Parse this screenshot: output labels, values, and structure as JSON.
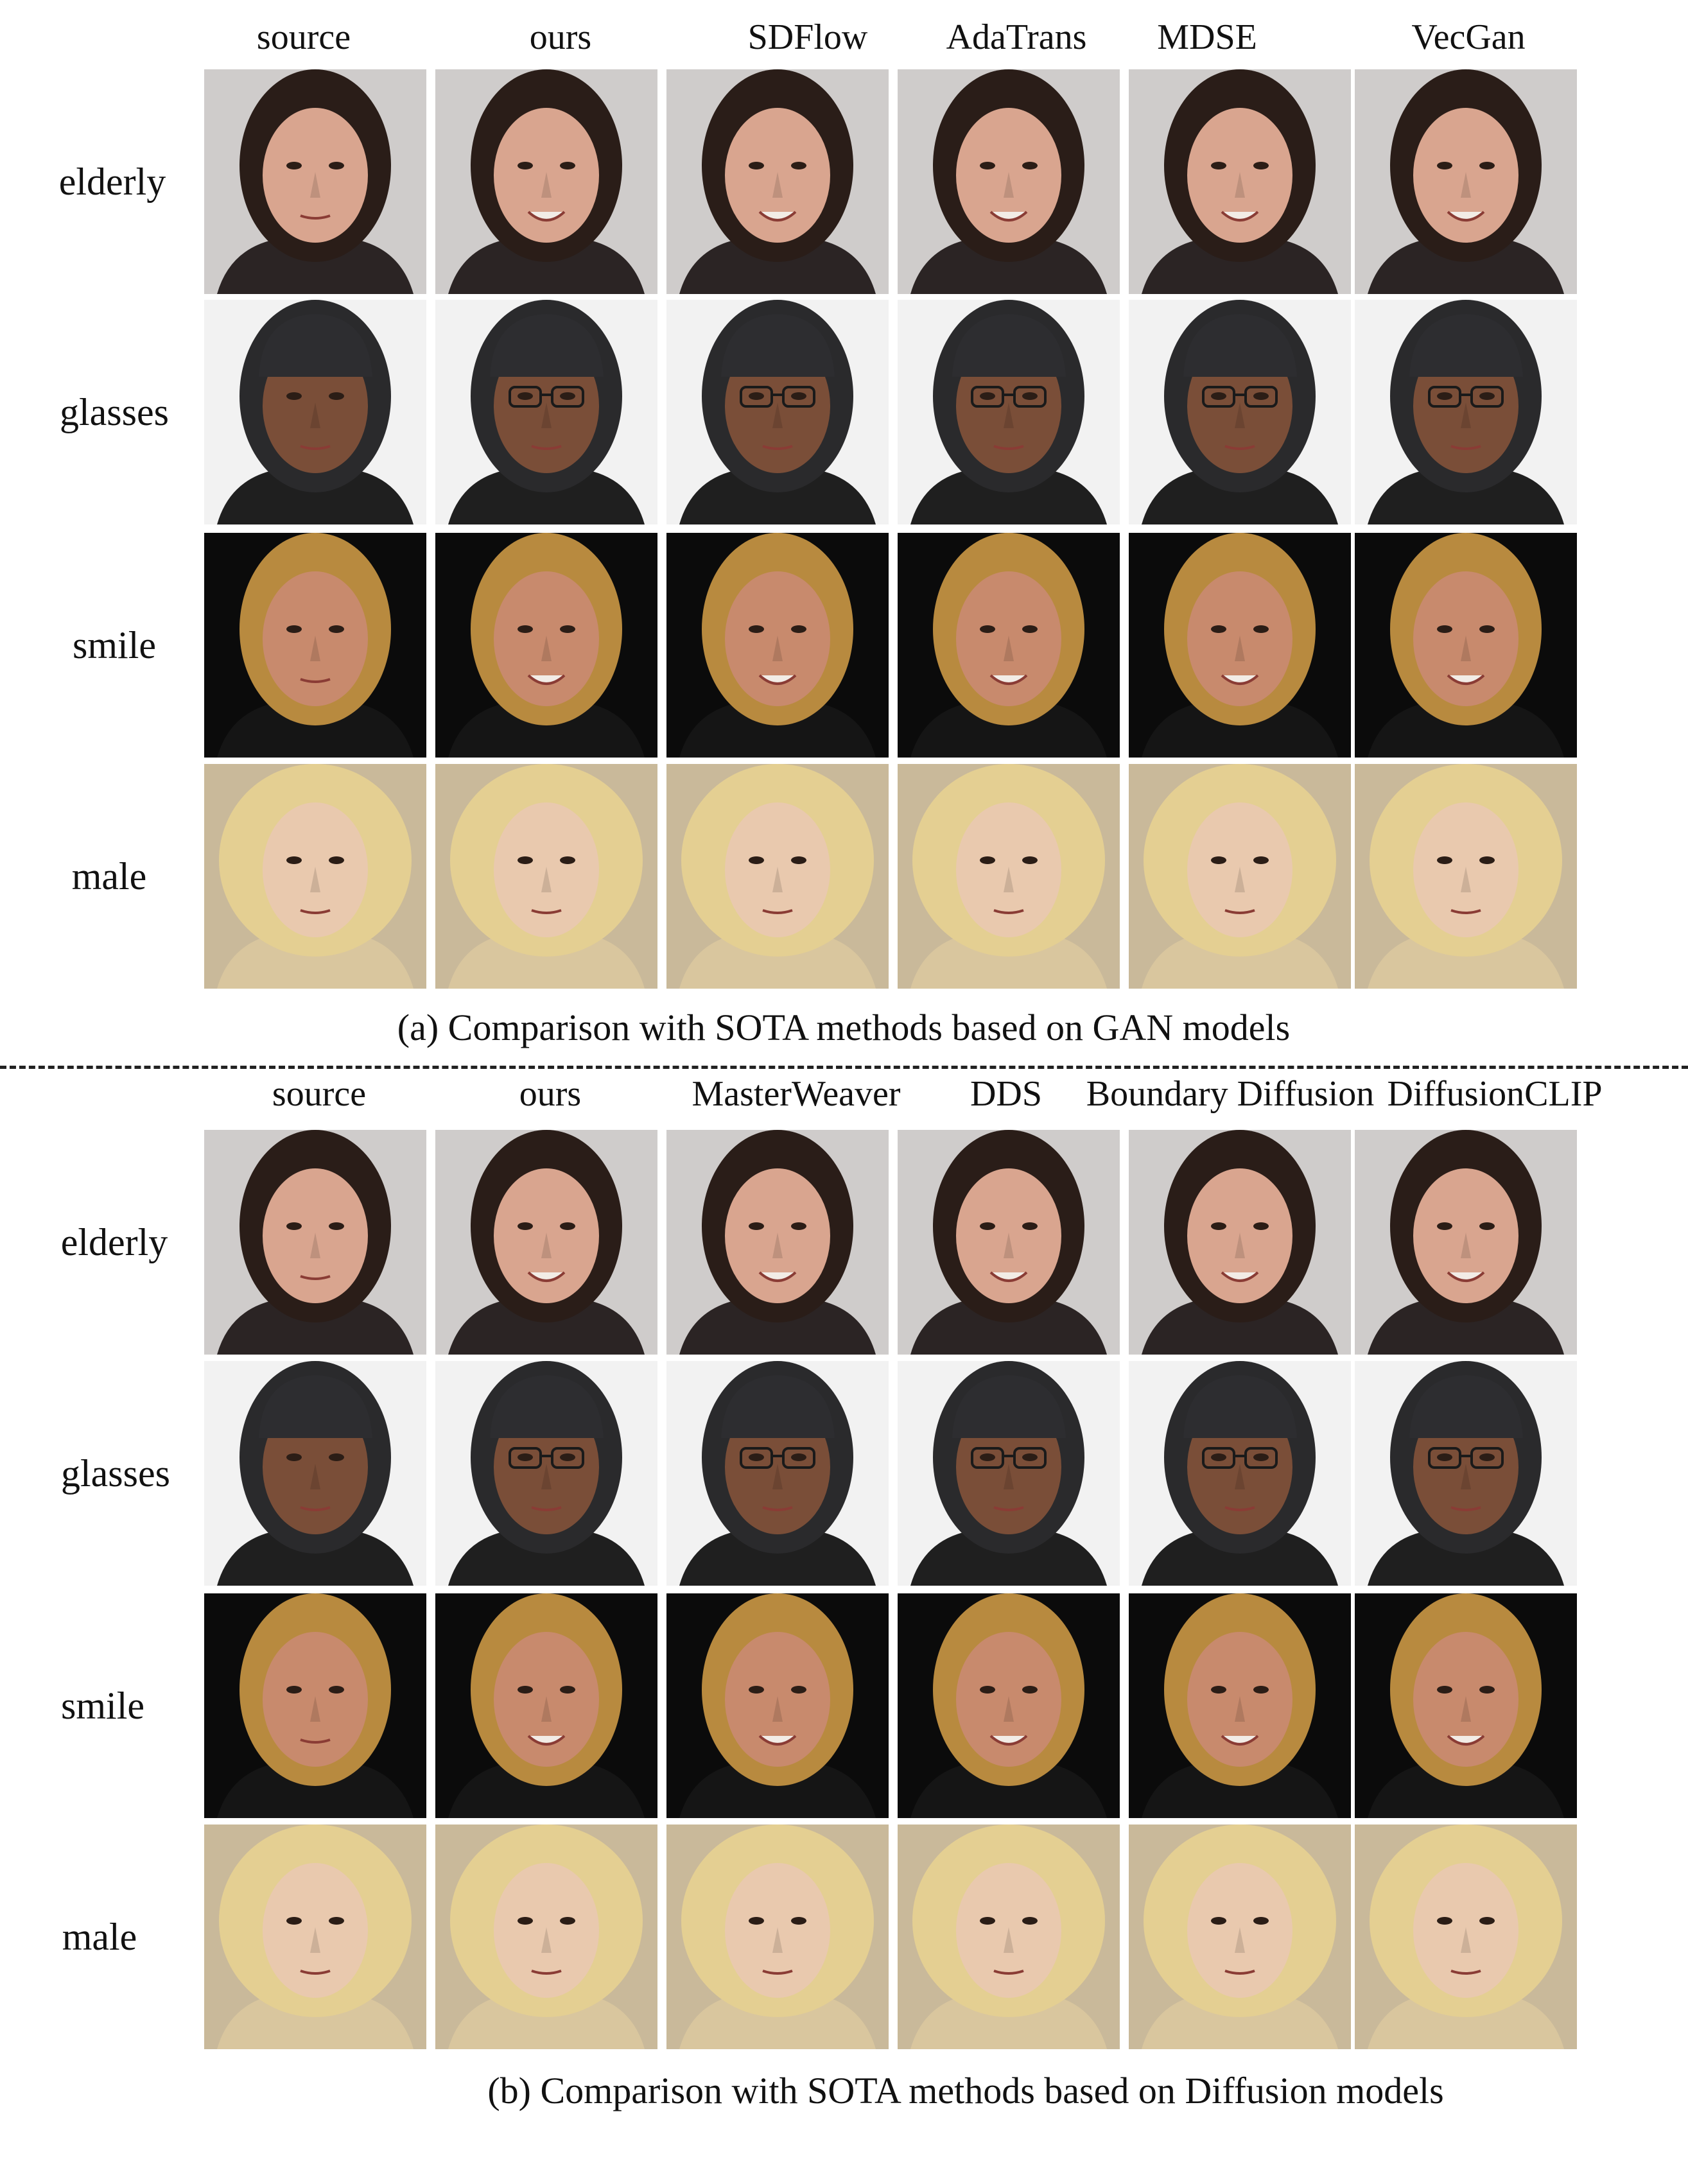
{
  "figure": {
    "panel_a": {
      "column_headers": [
        "source",
        "ours",
        "SDFlow",
        "AdaTrans",
        "MDSE",
        "VecGan"
      ],
      "row_labels": [
        "elderly",
        "glasses",
        "smile",
        "male"
      ],
      "caption": "(a) Comparison with SOTA methods based on GAN models"
    },
    "panel_b": {
      "column_headers": [
        "source",
        "ours",
        "MasterWeaver",
        "DDS",
        "Boundary Diffusion",
        "DiffusionCLIP"
      ],
      "row_labels": [
        "elderly",
        "glasses",
        "smile",
        "male"
      ],
      "caption": "(b) Comparison with SOTA methods based on Diffusion models"
    }
  },
  "images": {
    "subjects": [
      {
        "row": "elderly",
        "background": "#cfcccb",
        "hair": "#2a1d18",
        "skin": "#d9a58f",
        "clothing": "#2b2424"
      },
      {
        "row": "glasses",
        "background": "#f2f2f2",
        "hair": "#2a2a2c",
        "skin": "#7a4e38",
        "clothing": "#1f1f1f",
        "cap": "#2d2d30"
      },
      {
        "row": "smile",
        "background": "#0b0b0b",
        "hair": "#b88a3f",
        "skin": "#c88a6d",
        "clothing": "#151515"
      },
      {
        "row": "male",
        "background": "#c9b99a",
        "hair": "#e4cf92",
        "skin": "#e9c9ae",
        "clothing": "#d9c69e"
      }
    ]
  }
}
